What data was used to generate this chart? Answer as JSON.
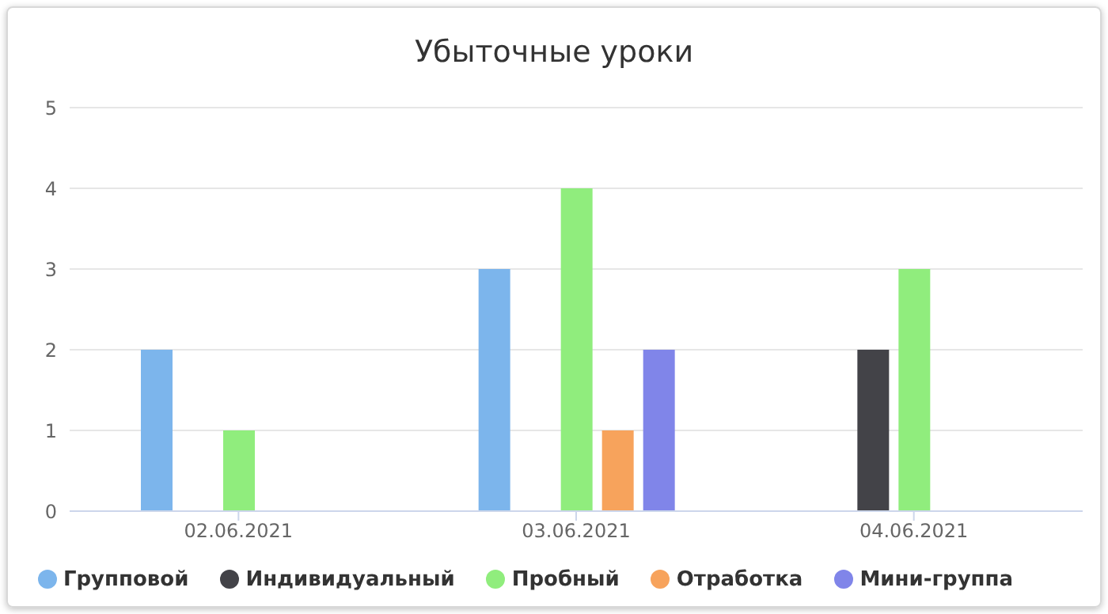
{
  "chart_data": {
    "type": "bar",
    "title": "Убыточные уроки",
    "categories": [
      "02.06.2021",
      "03.06.2021",
      "04.06.2021"
    ],
    "series": [
      {
        "name": "Групповой",
        "color": "#7cb5ec",
        "values": [
          2,
          3,
          null
        ]
      },
      {
        "name": "Индивидуальный",
        "color": "#434348",
        "values": [
          null,
          null,
          2
        ]
      },
      {
        "name": "Пробный",
        "color": "#90ed7d",
        "values": [
          1,
          4,
          3
        ]
      },
      {
        "name": "Отработка",
        "color": "#f7a35c",
        "values": [
          null,
          1,
          null
        ]
      },
      {
        "name": "Мини-группа",
        "color": "#8085e9",
        "values": [
          null,
          2,
          null
        ]
      }
    ],
    "ylim": [
      0,
      5
    ],
    "yticks": [
      0,
      1,
      2,
      3,
      4,
      5
    ],
    "grid": "y",
    "legend": "bottom"
  }
}
